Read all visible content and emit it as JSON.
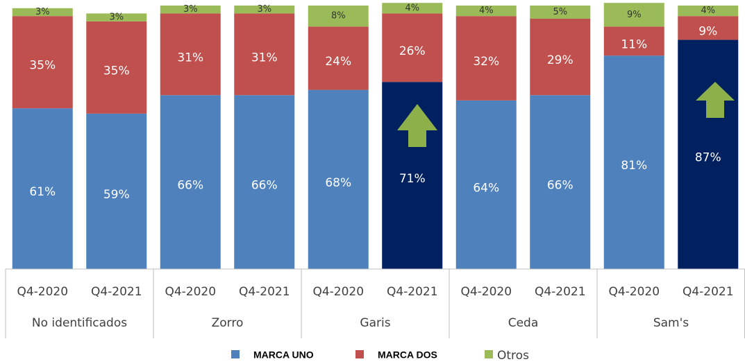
{
  "chart_data": {
    "type": "stacked_bar",
    "categories": [
      "Q4-2020",
      "Q4-2021",
      "Q4-2020",
      "Q4-2021",
      "Q4-2020",
      "Q4-2021",
      "Q4-2020",
      "Q4-2021",
      "Q4-2020",
      "Q4-2021"
    ],
    "groups": [
      "No identificados",
      "Zorro",
      "Garis",
      "Ceda",
      "Sam's"
    ],
    "series": [
      {
        "name": "MARCA UNO",
        "color": "#4f81bd",
        "colors": [
          "#4f81bd",
          "#4f81bd",
          "#4f81bd",
          "#4f81bd",
          "#4f81bd",
          "#002060",
          "#4f81bd",
          "#4f81bd",
          "#4f81bd",
          "#002060"
        ],
        "values": [
          61,
          59,
          66,
          66,
          68,
          71,
          64,
          66,
          81,
          87
        ],
        "value_labels": [
          "61%",
          "59%",
          "66%",
          "66%",
          "68%",
          "71%",
          "64%",
          "66%",
          "81%",
          "87%"
        ]
      },
      {
        "name": "MARCA DOS",
        "color": "#c0504d",
        "values": [
          35,
          35,
          31,
          31,
          24,
          26,
          32,
          29,
          11,
          9
        ],
        "value_labels": [
          "35%",
          "35%",
          "31%",
          "31%",
          "24%",
          "26%",
          "32%",
          "29%",
          "11%",
          "9%"
        ]
      },
      {
        "name": "Otros",
        "color": "#9bbb59",
        "values": [
          3,
          3,
          3,
          3,
          8,
          4,
          4,
          5,
          9,
          4
        ],
        "value_labels": [
          "3%",
          "3%",
          "3%",
          "3%",
          "8%",
          "4%",
          "4%",
          "5%",
          "9%",
          "4%"
        ]
      }
    ],
    "ylim": [
      0,
      100
    ]
  }
}
